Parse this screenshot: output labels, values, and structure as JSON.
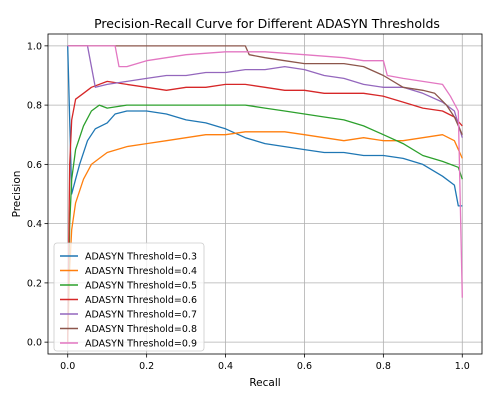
{
  "chart_data": {
    "type": "line",
    "title": "Precision-Recall Curve for Different ADASYN Thresholds",
    "xlabel": "Recall",
    "ylabel": "Precision",
    "xlim": [
      -0.05,
      1.05
    ],
    "ylim": [
      -0.04,
      1.04
    ],
    "grid": true,
    "legend": "lower-left",
    "x_ticks": [
      "0.0",
      "0.2",
      "0.4",
      "0.6",
      "0.8",
      "1.0"
    ],
    "y_ticks": [
      "0.0",
      "0.2",
      "0.4",
      "0.6",
      "0.8",
      "1.0"
    ],
    "series": [
      {
        "name": "ADASYN Threshold=0.3",
        "color": "#1f77b4",
        "points": [
          [
            0.0,
            1.0
          ],
          [
            0.01,
            0.5
          ],
          [
            0.02,
            0.55
          ],
          [
            0.03,
            0.6
          ],
          [
            0.05,
            0.68
          ],
          [
            0.07,
            0.72
          ],
          [
            0.1,
            0.74
          ],
          [
            0.12,
            0.77
          ],
          [
            0.15,
            0.78
          ],
          [
            0.2,
            0.78
          ],
          [
            0.25,
            0.77
          ],
          [
            0.3,
            0.75
          ],
          [
            0.35,
            0.74
          ],
          [
            0.4,
            0.72
          ],
          [
            0.45,
            0.69
          ],
          [
            0.5,
            0.67
          ],
          [
            0.55,
            0.66
          ],
          [
            0.6,
            0.65
          ],
          [
            0.65,
            0.64
          ],
          [
            0.7,
            0.64
          ],
          [
            0.75,
            0.63
          ],
          [
            0.8,
            0.63
          ],
          [
            0.85,
            0.62
          ],
          [
            0.9,
            0.6
          ],
          [
            0.95,
            0.56
          ],
          [
            0.98,
            0.53
          ],
          [
            0.99,
            0.46
          ],
          [
            1.0,
            0.46
          ]
        ]
      },
      {
        "name": "ADASYN Threshold=0.4",
        "color": "#ff7f0e",
        "points": [
          [
            0.0,
            0.0
          ],
          [
            0.005,
            0.25
          ],
          [
            0.01,
            0.38
          ],
          [
            0.02,
            0.47
          ],
          [
            0.04,
            0.55
          ],
          [
            0.06,
            0.6
          ],
          [
            0.08,
            0.62
          ],
          [
            0.1,
            0.64
          ],
          [
            0.15,
            0.66
          ],
          [
            0.2,
            0.67
          ],
          [
            0.25,
            0.68
          ],
          [
            0.3,
            0.69
          ],
          [
            0.35,
            0.7
          ],
          [
            0.4,
            0.7
          ],
          [
            0.45,
            0.71
          ],
          [
            0.5,
            0.71
          ],
          [
            0.55,
            0.71
          ],
          [
            0.6,
            0.7
          ],
          [
            0.65,
            0.69
          ],
          [
            0.7,
            0.68
          ],
          [
            0.75,
            0.69
          ],
          [
            0.8,
            0.68
          ],
          [
            0.85,
            0.68
          ],
          [
            0.9,
            0.69
          ],
          [
            0.95,
            0.7
          ],
          [
            0.98,
            0.68
          ],
          [
            1.0,
            0.62
          ]
        ]
      },
      {
        "name": "ADASYN Threshold=0.5",
        "color": "#2ca02c",
        "points": [
          [
            0.0,
            0.0
          ],
          [
            0.005,
            0.4
          ],
          [
            0.01,
            0.55
          ],
          [
            0.02,
            0.65
          ],
          [
            0.04,
            0.73
          ],
          [
            0.06,
            0.78
          ],
          [
            0.08,
            0.8
          ],
          [
            0.1,
            0.79
          ],
          [
            0.15,
            0.8
          ],
          [
            0.2,
            0.8
          ],
          [
            0.25,
            0.8
          ],
          [
            0.3,
            0.8
          ],
          [
            0.35,
            0.8
          ],
          [
            0.4,
            0.8
          ],
          [
            0.45,
            0.8
          ],
          [
            0.5,
            0.79
          ],
          [
            0.55,
            0.78
          ],
          [
            0.6,
            0.77
          ],
          [
            0.65,
            0.76
          ],
          [
            0.7,
            0.75
          ],
          [
            0.75,
            0.73
          ],
          [
            0.8,
            0.7
          ],
          [
            0.85,
            0.67
          ],
          [
            0.9,
            0.63
          ],
          [
            0.95,
            0.61
          ],
          [
            0.99,
            0.59
          ],
          [
            1.0,
            0.55
          ]
        ]
      },
      {
        "name": "ADASYN Threshold=0.6",
        "color": "#d62728",
        "points": [
          [
            0.0,
            0.0
          ],
          [
            0.005,
            0.6
          ],
          [
            0.01,
            0.75
          ],
          [
            0.02,
            0.82
          ],
          [
            0.04,
            0.84
          ],
          [
            0.06,
            0.86
          ],
          [
            0.1,
            0.88
          ],
          [
            0.15,
            0.87
          ],
          [
            0.2,
            0.86
          ],
          [
            0.25,
            0.85
          ],
          [
            0.3,
            0.86
          ],
          [
            0.35,
            0.86
          ],
          [
            0.4,
            0.87
          ],
          [
            0.45,
            0.87
          ],
          [
            0.5,
            0.86
          ],
          [
            0.55,
            0.85
          ],
          [
            0.6,
            0.85
          ],
          [
            0.65,
            0.84
          ],
          [
            0.7,
            0.84
          ],
          [
            0.75,
            0.84
          ],
          [
            0.8,
            0.83
          ],
          [
            0.85,
            0.81
          ],
          [
            0.9,
            0.79
          ],
          [
            0.95,
            0.78
          ],
          [
            0.98,
            0.76
          ],
          [
            1.0,
            0.73
          ]
        ]
      },
      {
        "name": "ADASYN Threshold=0.7",
        "color": "#9467bd",
        "points": [
          [
            0.0,
            1.0
          ],
          [
            0.05,
            1.0
          ],
          [
            0.07,
            0.86
          ],
          [
            0.1,
            0.87
          ],
          [
            0.15,
            0.88
          ],
          [
            0.2,
            0.89
          ],
          [
            0.25,
            0.9
          ],
          [
            0.3,
            0.9
          ],
          [
            0.35,
            0.91
          ],
          [
            0.4,
            0.91
          ],
          [
            0.45,
            0.92
          ],
          [
            0.5,
            0.92
          ],
          [
            0.55,
            0.93
          ],
          [
            0.6,
            0.92
          ],
          [
            0.65,
            0.9
          ],
          [
            0.7,
            0.89
          ],
          [
            0.75,
            0.87
          ],
          [
            0.8,
            0.86
          ],
          [
            0.85,
            0.86
          ],
          [
            0.9,
            0.84
          ],
          [
            0.95,
            0.81
          ],
          [
            0.98,
            0.78
          ],
          [
            1.0,
            0.69
          ]
        ]
      },
      {
        "name": "ADASYN Threshold=0.8",
        "color": "#8c564b",
        "points": [
          [
            0.0,
            1.0
          ],
          [
            0.1,
            1.0
          ],
          [
            0.45,
            1.0
          ],
          [
            0.46,
            0.97
          ],
          [
            0.5,
            0.96
          ],
          [
            0.55,
            0.95
          ],
          [
            0.6,
            0.94
          ],
          [
            0.65,
            0.94
          ],
          [
            0.7,
            0.94
          ],
          [
            0.75,
            0.93
          ],
          [
            0.8,
            0.9
          ],
          [
            0.85,
            0.86
          ],
          [
            0.9,
            0.85
          ],
          [
            0.93,
            0.84
          ],
          [
            0.96,
            0.8
          ],
          [
            0.98,
            0.76
          ],
          [
            1.0,
            0.7
          ]
        ]
      },
      {
        "name": "ADASYN Threshold=0.9",
        "color": "#e377c2",
        "points": [
          [
            0.0,
            1.0
          ],
          [
            0.12,
            1.0
          ],
          [
            0.13,
            0.93
          ],
          [
            0.15,
            0.93
          ],
          [
            0.2,
            0.95
          ],
          [
            0.3,
            0.97
          ],
          [
            0.4,
            0.98
          ],
          [
            0.5,
            0.98
          ],
          [
            0.6,
            0.97
          ],
          [
            0.7,
            0.96
          ],
          [
            0.75,
            0.95
          ],
          [
            0.8,
            0.95
          ],
          [
            0.81,
            0.9
          ],
          [
            0.85,
            0.89
          ],
          [
            0.9,
            0.88
          ],
          [
            0.95,
            0.87
          ],
          [
            0.97,
            0.83
          ],
          [
            0.99,
            0.78
          ],
          [
            1.0,
            0.15
          ]
        ]
      }
    ]
  }
}
